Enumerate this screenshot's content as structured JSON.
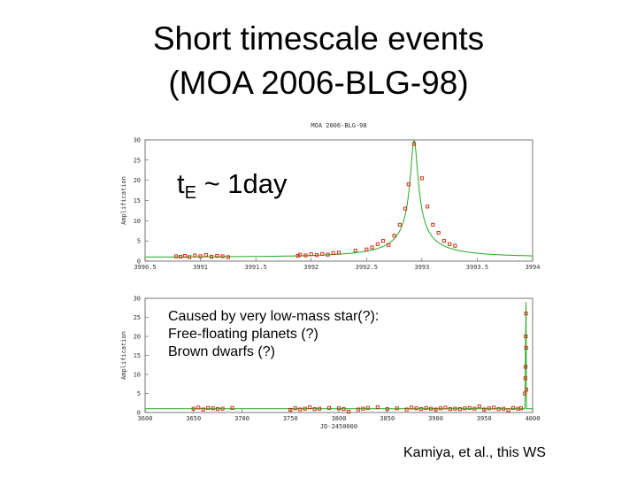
{
  "slide": {
    "title_line1": "Short timescale events",
    "title_line2": "(MOA 2006-BLG-98)",
    "te_prefix": "t",
    "te_sub": "E",
    "te_suffix": " ~ 1day",
    "cause_lines": [
      "Caused by very low-mass star(?):",
      "Free-floating planets (?)",
      "Brown dwarfs (?)"
    ],
    "credit": "Kamiya, et al., this WS"
  },
  "colors": {
    "data_points": "#cc2200",
    "model_curve": "#22aa22",
    "axis": "#555555"
  },
  "chart_data": [
    {
      "type": "scatter",
      "title": "MOA 2006-BLG-98",
      "ylabel": "Amplification",
      "xlim": [
        3990.5,
        3994
      ],
      "ylim": [
        0,
        30
      ],
      "x_ticks": [
        "3990.5",
        "3991",
        "3991.5",
        "3992",
        "3992.5",
        "3993",
        "3993.5",
        "3994"
      ],
      "x_tick_values": [
        3990.5,
        3991,
        3991.5,
        3992,
        3992.5,
        3993,
        3993.5,
        3994
      ],
      "y_ticks": [
        0,
        5,
        10,
        15,
        20,
        25,
        30
      ],
      "model": {
        "t0": 3992.93,
        "u0": 0.0335,
        "tE": 1.0
      },
      "x": [
        3990.78,
        3990.82,
        3990.86,
        3990.9,
        3990.95,
        3991.0,
        3991.05,
        3991.1,
        3991.15,
        3991.2,
        3991.25,
        3991.88,
        3991.9,
        3991.95,
        3992.0,
        3992.05,
        3992.1,
        3992.15,
        3992.2,
        3992.25,
        3992.4,
        3992.5,
        3992.55,
        3992.6,
        3992.65,
        3992.7,
        3992.75,
        3992.8,
        3992.85,
        3992.88,
        3992.93,
        3993.0,
        3993.05,
        3993.1,
        3993.15,
        3993.2,
        3993.25,
        3993.3
      ],
      "y": [
        1.2,
        1.1,
        1.3,
        1.0,
        1.4,
        1.2,
        1.5,
        1.1,
        1.3,
        1.2,
        1.0,
        1.3,
        1.6,
        1.4,
        1.7,
        1.5,
        1.8,
        1.6,
        2.0,
        2.1,
        2.6,
        2.9,
        3.4,
        4.2,
        5.0,
        4.0,
        6.3,
        9.0,
        13.0,
        19.0,
        29.0,
        20.5,
        13.5,
        9.0,
        7.0,
        5.0,
        4.2,
        3.8
      ]
    },
    {
      "type": "scatter",
      "xlabel": "JD-2450000",
      "ylabel": "Amplification",
      "xlim": [
        3600,
        4000
      ],
      "ylim": [
        0,
        30
      ],
      "x_ticks": [
        "3600",
        "3650",
        "3700",
        "3750",
        "3800",
        "3850",
        "3900",
        "3950",
        "4000"
      ],
      "x_tick_values": [
        3600,
        3650,
        3700,
        3750,
        3800,
        3850,
        3900,
        3950,
        4000
      ],
      "y_ticks": [
        0,
        5,
        10,
        15,
        20,
        25,
        30
      ],
      "baseline": 1.0,
      "x": [
        3650,
        3655,
        3660,
        3665,
        3670,
        3675,
        3680,
        3690,
        3750,
        3755,
        3760,
        3765,
        3770,
        3775,
        3780,
        3790,
        3800,
        3805,
        3810,
        3820,
        3825,
        3830,
        3840,
        3850,
        3860,
        3870,
        3875,
        3880,
        3885,
        3890,
        3895,
        3900,
        3905,
        3910,
        3915,
        3920,
        3925,
        3930,
        3935,
        3940,
        3945,
        3950,
        3955,
        3960,
        3965,
        3970,
        3975,
        3980,
        3985,
        3988,
        3992,
        3992.5,
        3992.8,
        3993,
        3993.2,
        3993.4,
        3993.6
      ],
      "y": [
        1.0,
        1.3,
        0.8,
        1.2,
        1.1,
        0.9,
        1.0,
        1.2,
        0.7,
        1.1,
        0.8,
        1.0,
        1.4,
        0.9,
        1.0,
        1.2,
        1.1,
        0.9,
        0.2,
        0.8,
        1.0,
        1.2,
        1.4,
        0.9,
        1.1,
        0.8,
        1.3,
        1.1,
        0.9,
        1.2,
        1.0,
        0.8,
        1.1,
        1.3,
        0.9,
        1.0,
        0.9,
        1.1,
        1.2,
        1.0,
        1.6,
        0.8,
        1.1,
        1.3,
        0.9,
        1.0,
        0.6,
        1.2,
        1.0,
        1.1,
        5.0,
        9.0,
        12.0,
        20.0,
        26.0,
        17.0,
        6.0
      ]
    }
  ]
}
